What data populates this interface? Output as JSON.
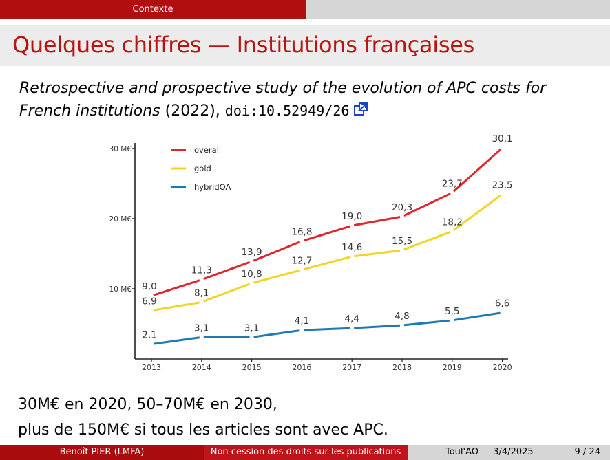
{
  "nav": {
    "section": "Contexte"
  },
  "slide": {
    "title": "Quelques chiffres — Institutions françaises",
    "reference": {
      "title_italic": "Retrospective and prospective study of the evolution of APC costs for French institutions",
      "year": " (2022), ",
      "doi": "doi:10.52949/26",
      "link_icon": "external-link-icon"
    },
    "notes": [
      "30M€ en 2020, 50–70M€ en 2030,",
      "plus de 150M€ si tous les articles sont avec APC."
    ]
  },
  "footer": {
    "author": "Benoît PIER  (LMFA)",
    "talk_title": "Non cession des droits sur les publications",
    "event_date": "Toul'AO — 3/4/2025",
    "page": "9 / 24"
  },
  "chart_data": {
    "type": "line",
    "title": "",
    "xlabel": "",
    "ylabel": "",
    "x": [
      "2013",
      "2014",
      "2015",
      "2016",
      "2017",
      "2018",
      "2019",
      "2020"
    ],
    "yticks": [
      "10 M€",
      "20 M€",
      "30 M€"
    ],
    "ylim": [
      0,
      31
    ],
    "grid": false,
    "legend": "top-left",
    "series": [
      {
        "name": "overall",
        "color": "#e0262a",
        "values": [
          9.0,
          11.3,
          13.9,
          16.8,
          19.0,
          20.3,
          23.7,
          30.1
        ],
        "labels": [
          "9,0",
          "11,3",
          "13,9",
          "16,8",
          "19,0",
          "20,3",
          "23,7",
          "30,1"
        ]
      },
      {
        "name": "gold",
        "color": "#f2d424",
        "values": [
          6.9,
          8.1,
          10.8,
          12.7,
          14.6,
          15.5,
          18.2,
          23.5
        ],
        "labels": [
          "6,9",
          "8,1",
          "10,8",
          "12,7",
          "14,6",
          "15,5",
          "18,2",
          "23,5"
        ]
      },
      {
        "name": "hybridOA",
        "color": "#1f7ab3",
        "values": [
          2.1,
          3.1,
          3.1,
          4.1,
          4.4,
          4.8,
          5.5,
          6.6
        ],
        "labels": [
          "2,1",
          "3,1",
          "3,1",
          "4,1",
          "4,4",
          "4,8",
          "5,5",
          "6,6"
        ]
      }
    ]
  }
}
